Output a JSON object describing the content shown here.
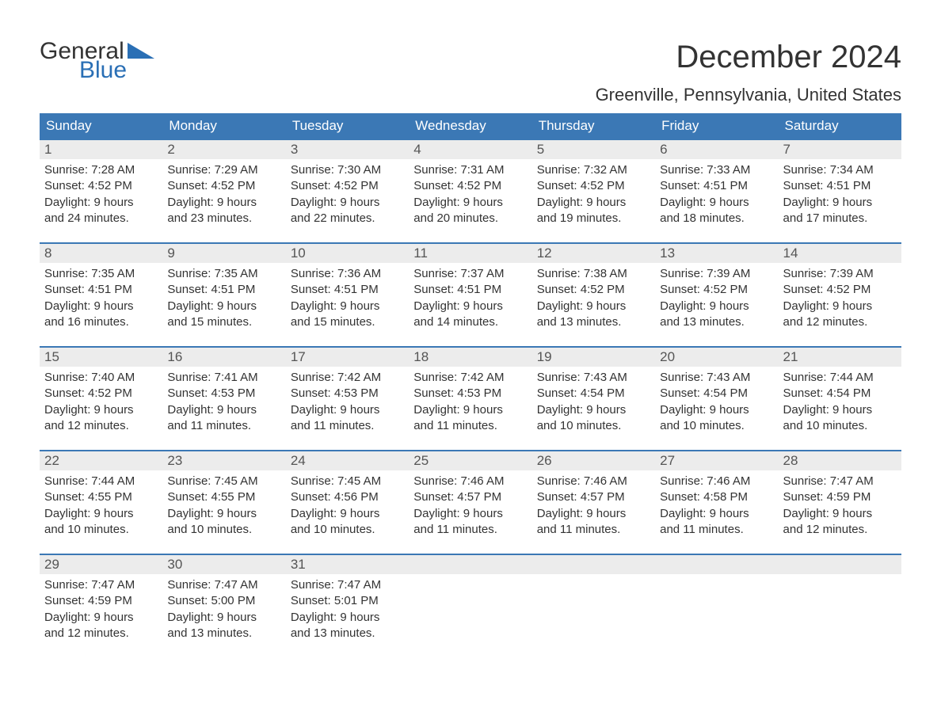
{
  "brand": {
    "word1": "General",
    "word2": "Blue",
    "color_general": "#333333",
    "color_blue": "#2a6fb5",
    "flag_color": "#2a6fb5"
  },
  "title": "December 2024",
  "location": "Greenville, Pennsylvania, United States",
  "colors": {
    "header_bg": "#3b78b5",
    "header_text": "#ffffff",
    "daynum_bg": "#ececec",
    "daynum_text": "#555555",
    "body_text": "#333333",
    "page_bg": "#ffffff",
    "week_border": "#3b78b5"
  },
  "typography": {
    "title_fontsize": 40,
    "location_fontsize": 22,
    "weekday_fontsize": 17,
    "daynum_fontsize": 17,
    "body_fontsize": 15
  },
  "weekdays": [
    "Sunday",
    "Monday",
    "Tuesday",
    "Wednesday",
    "Thursday",
    "Friday",
    "Saturday"
  ],
  "weeks": [
    [
      {
        "n": "1",
        "sr": "Sunrise: 7:28 AM",
        "ss": "Sunset: 4:52 PM",
        "dl1": "Daylight: 9 hours",
        "dl2": "and 24 minutes."
      },
      {
        "n": "2",
        "sr": "Sunrise: 7:29 AM",
        "ss": "Sunset: 4:52 PM",
        "dl1": "Daylight: 9 hours",
        "dl2": "and 23 minutes."
      },
      {
        "n": "3",
        "sr": "Sunrise: 7:30 AM",
        "ss": "Sunset: 4:52 PM",
        "dl1": "Daylight: 9 hours",
        "dl2": "and 22 minutes."
      },
      {
        "n": "4",
        "sr": "Sunrise: 7:31 AM",
        "ss": "Sunset: 4:52 PM",
        "dl1": "Daylight: 9 hours",
        "dl2": "and 20 minutes."
      },
      {
        "n": "5",
        "sr": "Sunrise: 7:32 AM",
        "ss": "Sunset: 4:52 PM",
        "dl1": "Daylight: 9 hours",
        "dl2": "and 19 minutes."
      },
      {
        "n": "6",
        "sr": "Sunrise: 7:33 AM",
        "ss": "Sunset: 4:51 PM",
        "dl1": "Daylight: 9 hours",
        "dl2": "and 18 minutes."
      },
      {
        "n": "7",
        "sr": "Sunrise: 7:34 AM",
        "ss": "Sunset: 4:51 PM",
        "dl1": "Daylight: 9 hours",
        "dl2": "and 17 minutes."
      }
    ],
    [
      {
        "n": "8",
        "sr": "Sunrise: 7:35 AM",
        "ss": "Sunset: 4:51 PM",
        "dl1": "Daylight: 9 hours",
        "dl2": "and 16 minutes."
      },
      {
        "n": "9",
        "sr": "Sunrise: 7:35 AM",
        "ss": "Sunset: 4:51 PM",
        "dl1": "Daylight: 9 hours",
        "dl2": "and 15 minutes."
      },
      {
        "n": "10",
        "sr": "Sunrise: 7:36 AM",
        "ss": "Sunset: 4:51 PM",
        "dl1": "Daylight: 9 hours",
        "dl2": "and 15 minutes."
      },
      {
        "n": "11",
        "sr": "Sunrise: 7:37 AM",
        "ss": "Sunset: 4:51 PM",
        "dl1": "Daylight: 9 hours",
        "dl2": "and 14 minutes."
      },
      {
        "n": "12",
        "sr": "Sunrise: 7:38 AM",
        "ss": "Sunset: 4:52 PM",
        "dl1": "Daylight: 9 hours",
        "dl2": "and 13 minutes."
      },
      {
        "n": "13",
        "sr": "Sunrise: 7:39 AM",
        "ss": "Sunset: 4:52 PM",
        "dl1": "Daylight: 9 hours",
        "dl2": "and 13 minutes."
      },
      {
        "n": "14",
        "sr": "Sunrise: 7:39 AM",
        "ss": "Sunset: 4:52 PM",
        "dl1": "Daylight: 9 hours",
        "dl2": "and 12 minutes."
      }
    ],
    [
      {
        "n": "15",
        "sr": "Sunrise: 7:40 AM",
        "ss": "Sunset: 4:52 PM",
        "dl1": "Daylight: 9 hours",
        "dl2": "and 12 minutes."
      },
      {
        "n": "16",
        "sr": "Sunrise: 7:41 AM",
        "ss": "Sunset: 4:53 PM",
        "dl1": "Daylight: 9 hours",
        "dl2": "and 11 minutes."
      },
      {
        "n": "17",
        "sr": "Sunrise: 7:42 AM",
        "ss": "Sunset: 4:53 PM",
        "dl1": "Daylight: 9 hours",
        "dl2": "and 11 minutes."
      },
      {
        "n": "18",
        "sr": "Sunrise: 7:42 AM",
        "ss": "Sunset: 4:53 PM",
        "dl1": "Daylight: 9 hours",
        "dl2": "and 11 minutes."
      },
      {
        "n": "19",
        "sr": "Sunrise: 7:43 AM",
        "ss": "Sunset: 4:54 PM",
        "dl1": "Daylight: 9 hours",
        "dl2": "and 10 minutes."
      },
      {
        "n": "20",
        "sr": "Sunrise: 7:43 AM",
        "ss": "Sunset: 4:54 PM",
        "dl1": "Daylight: 9 hours",
        "dl2": "and 10 minutes."
      },
      {
        "n": "21",
        "sr": "Sunrise: 7:44 AM",
        "ss": "Sunset: 4:54 PM",
        "dl1": "Daylight: 9 hours",
        "dl2": "and 10 minutes."
      }
    ],
    [
      {
        "n": "22",
        "sr": "Sunrise: 7:44 AM",
        "ss": "Sunset: 4:55 PM",
        "dl1": "Daylight: 9 hours",
        "dl2": "and 10 minutes."
      },
      {
        "n": "23",
        "sr": "Sunrise: 7:45 AM",
        "ss": "Sunset: 4:55 PM",
        "dl1": "Daylight: 9 hours",
        "dl2": "and 10 minutes."
      },
      {
        "n": "24",
        "sr": "Sunrise: 7:45 AM",
        "ss": "Sunset: 4:56 PM",
        "dl1": "Daylight: 9 hours",
        "dl2": "and 10 minutes."
      },
      {
        "n": "25",
        "sr": "Sunrise: 7:46 AM",
        "ss": "Sunset: 4:57 PM",
        "dl1": "Daylight: 9 hours",
        "dl2": "and 11 minutes."
      },
      {
        "n": "26",
        "sr": "Sunrise: 7:46 AM",
        "ss": "Sunset: 4:57 PM",
        "dl1": "Daylight: 9 hours",
        "dl2": "and 11 minutes."
      },
      {
        "n": "27",
        "sr": "Sunrise: 7:46 AM",
        "ss": "Sunset: 4:58 PM",
        "dl1": "Daylight: 9 hours",
        "dl2": "and 11 minutes."
      },
      {
        "n": "28",
        "sr": "Sunrise: 7:47 AM",
        "ss": "Sunset: 4:59 PM",
        "dl1": "Daylight: 9 hours",
        "dl2": "and 12 minutes."
      }
    ],
    [
      {
        "n": "29",
        "sr": "Sunrise: 7:47 AM",
        "ss": "Sunset: 4:59 PM",
        "dl1": "Daylight: 9 hours",
        "dl2": "and 12 minutes."
      },
      {
        "n": "30",
        "sr": "Sunrise: 7:47 AM",
        "ss": "Sunset: 5:00 PM",
        "dl1": "Daylight: 9 hours",
        "dl2": "and 13 minutes."
      },
      {
        "n": "31",
        "sr": "Sunrise: 7:47 AM",
        "ss": "Sunset: 5:01 PM",
        "dl1": "Daylight: 9 hours",
        "dl2": "and 13 minutes."
      },
      null,
      null,
      null,
      null
    ]
  ]
}
